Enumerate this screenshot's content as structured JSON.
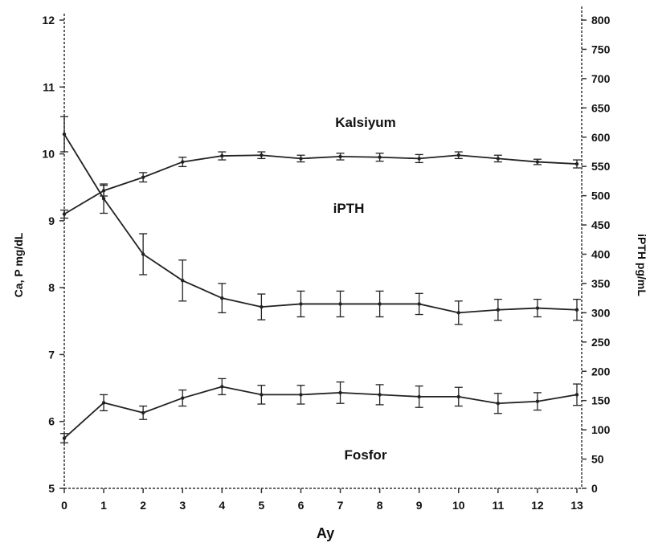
{
  "chart_data": {
    "type": "line",
    "xlabel": "Ay",
    "ylabel_left": "Ca, P mg/dL",
    "ylabel_right": "iPTH pg/mL",
    "x": [
      0,
      1,
      2,
      3,
      4,
      5,
      6,
      7,
      8,
      9,
      10,
      11,
      12,
      13
    ],
    "xlim": [
      0,
      13
    ],
    "ylim_left": [
      5,
      12
    ],
    "ylim_right": [
      0,
      800
    ],
    "x_ticks": [
      "0",
      "1",
      "2",
      "3",
      "4",
      "5",
      "6",
      "7",
      "8",
      "9",
      "10",
      "11",
      "12",
      "13"
    ],
    "y_left_ticks": [
      "5",
      "6",
      "7",
      "8",
      "9",
      "10",
      "11",
      "12"
    ],
    "y_right_ticks": [
      "0",
      "50",
      "100",
      "150",
      "200",
      "250",
      "300",
      "350",
      "400",
      "450",
      "500",
      "550",
      "600",
      "650",
      "700",
      "750",
      "800"
    ],
    "grid": false,
    "series": [
      {
        "name": "Kalsiyum",
        "axis": "left",
        "values": [
          9.1,
          9.45,
          9.65,
          9.88,
          9.97,
          9.98,
          9.93,
          9.96,
          9.95,
          9.93,
          9.98,
          9.93,
          9.88,
          9.85
        ],
        "errors": [
          0.06,
          0.08,
          0.07,
          0.07,
          0.06,
          0.05,
          0.05,
          0.05,
          0.06,
          0.06,
          0.05,
          0.05,
          0.04,
          0.06
        ]
      },
      {
        "name": "iPTH",
        "axis": "right",
        "values": [
          605,
          495,
          400,
          355,
          325,
          310,
          315,
          315,
          315,
          315,
          300,
          305,
          308,
          305
        ],
        "errors": [
          30,
          25,
          35,
          35,
          25,
          22,
          22,
          22,
          22,
          18,
          20,
          18,
          15,
          18
        ]
      },
      {
        "name": "Fosfor",
        "axis": "left",
        "values": [
          5.75,
          6.28,
          6.13,
          6.35,
          6.52,
          6.4,
          6.4,
          6.43,
          6.4,
          6.37,
          6.37,
          6.27,
          6.3,
          6.4
        ],
        "errors": [
          0.07,
          0.12,
          0.1,
          0.12,
          0.12,
          0.14,
          0.14,
          0.16,
          0.15,
          0.16,
          0.14,
          0.15,
          0.13,
          0.16
        ]
      }
    ],
    "annotations": [
      {
        "text": "Kalsiyum",
        "series": "Kalsiyum"
      },
      {
        "text": "iPTH",
        "series": "iPTH"
      },
      {
        "text": "Fosfor",
        "series": "Fosfor"
      }
    ],
    "colors": {
      "line": "#222222",
      "axis": "#333333"
    }
  }
}
